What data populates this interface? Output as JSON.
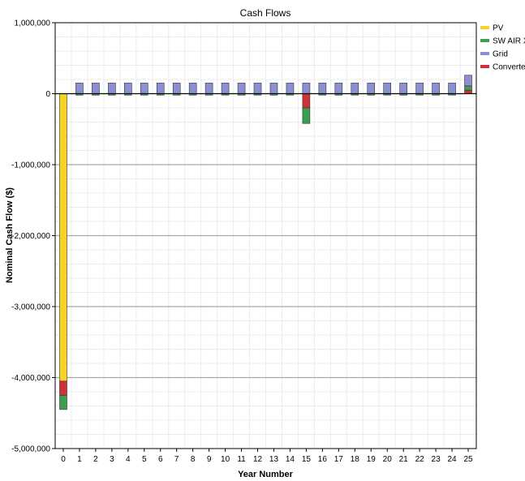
{
  "chart_data": {
    "type": "bar",
    "stacked": true,
    "title": "Cash Flows",
    "xlabel": "Year Number",
    "ylabel": "Nominal Cash Flow ($)",
    "ylim": [
      -5000000,
      1000000
    ],
    "yticks": [
      {
        "value": 1000000,
        "label": "1,000,000"
      },
      {
        "value": 0,
        "label": "0"
      },
      {
        "value": -1000000,
        "label": "-1,000,000"
      },
      {
        "value": -2000000,
        "label": "-2,000,000"
      },
      {
        "value": -3000000,
        "label": "-3,000,000"
      },
      {
        "value": -4000000,
        "label": "-4,000,000"
      },
      {
        "value": -5000000,
        "label": "-5,000,000"
      }
    ],
    "categories": [
      "0",
      "1",
      "2",
      "3",
      "4",
      "5",
      "6",
      "7",
      "8",
      "9",
      "10",
      "11",
      "12",
      "13",
      "14",
      "15",
      "16",
      "17",
      "18",
      "19",
      "20",
      "21",
      "22",
      "23",
      "24",
      "25"
    ],
    "grid": "horizontal major lines",
    "legend_position": "right",
    "series": [
      {
        "name": "PV",
        "color": "#f5d327",
        "values": [
          -4050000,
          0,
          0,
          0,
          0,
          0,
          0,
          0,
          0,
          0,
          0,
          0,
          0,
          0,
          0,
          0,
          0,
          0,
          0,
          0,
          0,
          0,
          0,
          0,
          0,
          0
        ]
      },
      {
        "name": "SW AIR X",
        "color": "#3aa04f",
        "values": [
          -200000,
          -20000,
          -20000,
          -20000,
          -20000,
          -20000,
          -20000,
          -20000,
          -20000,
          -20000,
          -20000,
          -20000,
          -20000,
          -20000,
          -20000,
          -220000,
          -20000,
          -20000,
          -20000,
          -20000,
          -20000,
          -20000,
          -20000,
          -20000,
          -20000,
          60000
        ]
      },
      {
        "name": "Grid",
        "color": "#8c8fd4",
        "values": [
          0,
          150000,
          150000,
          150000,
          150000,
          150000,
          150000,
          150000,
          150000,
          150000,
          150000,
          150000,
          150000,
          150000,
          150000,
          150000,
          150000,
          150000,
          150000,
          150000,
          150000,
          150000,
          150000,
          150000,
          150000,
          150000
        ]
      },
      {
        "name": "Converter",
        "color": "#d0303a",
        "values": [
          -200000,
          0,
          0,
          0,
          0,
          0,
          0,
          0,
          0,
          0,
          0,
          0,
          0,
          0,
          0,
          -200000,
          0,
          0,
          0,
          0,
          0,
          0,
          0,
          0,
          0,
          50000
        ]
      }
    ]
  }
}
